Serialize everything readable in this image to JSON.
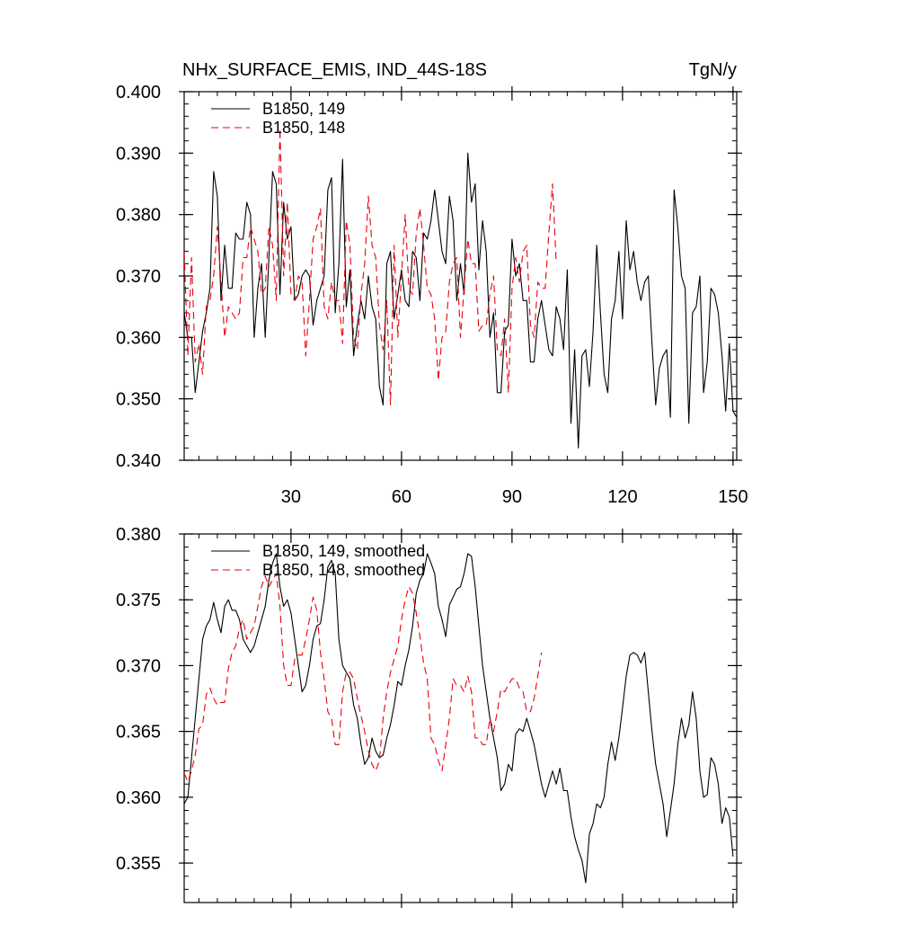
{
  "page": {
    "title_left": "NHx_SURFACE_EMIS, IND_44S-18S",
    "title_right": "TgN/y"
  },
  "chart_data": [
    {
      "type": "line",
      "ylim": [
        0.34,
        0.4
      ],
      "xlim": [
        1,
        151
      ],
      "yticks": [
        0.34,
        0.35,
        0.36,
        0.37,
        0.38,
        0.39,
        0.4
      ],
      "ytick_labels": [
        "0.340",
        "0.350",
        "0.360",
        "0.370",
        "0.380",
        "0.390",
        "0.400"
      ],
      "xticks": [
        30,
        60,
        90,
        120,
        150
      ],
      "xtick_labels": [
        "30",
        "60",
        "90",
        "120",
        "150"
      ],
      "legend_position": "top-left",
      "series": [
        {
          "name": "B1850, 149",
          "color": "#000000",
          "dash": "solid",
          "values": [
            0.364,
            0.36,
            0.36,
            0.351,
            0.356,
            0.361,
            0.364,
            0.368,
            0.387,
            0.383,
            0.366,
            0.375,
            0.368,
            0.368,
            0.377,
            0.376,
            0.376,
            0.382,
            0.38,
            0.36,
            0.368,
            0.372,
            0.36,
            0.373,
            0.387,
            0.385,
            0.367,
            0.382,
            0.376,
            0.378,
            0.366,
            0.367,
            0.37,
            0.371,
            0.37,
            0.362,
            0.366,
            0.368,
            0.37,
            0.384,
            0.386,
            0.364,
            0.372,
            0.389,
            0.365,
            0.371,
            0.357,
            0.362,
            0.366,
            0.363,
            0.37,
            0.365,
            0.363,
            0.352,
            0.349,
            0.372,
            0.374,
            0.363,
            0.367,
            0.371,
            0.366,
            0.365,
            0.374,
            0.373,
            0.366,
            0.377,
            0.376,
            0.379,
            0.384,
            0.379,
            0.374,
            0.372,
            0.383,
            0.379,
            0.366,
            0.372,
            0.367,
            0.39,
            0.382,
            0.385,
            0.371,
            0.379,
            0.374,
            0.36,
            0.364,
            0.351,
            0.351,
            0.361,
            0.362,
            0.376,
            0.37,
            0.372,
            0.366,
            0.366,
            0.356,
            0.356,
            0.363,
            0.366,
            0.362,
            0.358,
            0.357,
            0.365,
            0.363,
            0.358,
            0.371,
            0.346,
            0.358,
            0.342,
            0.357,
            0.358,
            0.352,
            0.361,
            0.375,
            0.364,
            0.354,
            0.351,
            0.363,
            0.366,
            0.374,
            0.363,
            0.379,
            0.371,
            0.374,
            0.369,
            0.366,
            0.369,
            0.37,
            0.359,
            0.349,
            0.355,
            0.357,
            0.358,
            0.347,
            0.384,
            0.378,
            0.37,
            0.368,
            0.346,
            0.364,
            0.365,
            0.37,
            0.351,
            0.356,
            0.368,
            0.367,
            0.364,
            0.357,
            0.348,
            0.359,
            0.348,
            0.347
          ]
        },
        {
          "name": "B1850, 148",
          "color": "#e8000b",
          "dash": "8,5",
          "values": [
            0.374,
            0.357,
            0.373,
            0.356,
            0.359,
            0.354,
            0.365,
            0.366,
            0.37,
            0.378,
            0.369,
            0.36,
            0.365,
            0.364,
            0.363,
            0.364,
            0.373,
            0.373,
            0.378,
            0.376,
            0.374,
            0.367,
            0.368,
            0.378,
            0.375,
            0.366,
            0.394,
            0.37,
            0.382,
            0.367,
            0.366,
            0.37,
            0.369,
            0.357,
            0.366,
            0.376,
            0.378,
            0.381,
            0.365,
            0.363,
            0.369,
            0.366,
            0.366,
            0.359,
            0.379,
            0.375,
            0.36,
            0.358,
            0.367,
            0.372,
            0.383,
            0.375,
            0.373,
            0.362,
            0.358,
            0.366,
            0.349,
            0.375,
            0.36,
            0.37,
            0.38,
            0.368,
            0.367,
            0.377,
            0.381,
            0.375,
            0.368,
            0.367,
            0.363,
            0.353,
            0.36,
            0.361,
            0.369,
            0.372,
            0.373,
            0.36,
            0.368,
            0.376,
            0.372,
            0.372,
            0.361,
            0.362,
            0.362,
            0.367,
            0.37,
            0.358,
            0.357,
            0.363,
            0.351,
            0.368,
            0.373,
            0.369,
            0.374,
            0.375,
            0.362,
            0.36,
            0.369,
            0.368,
            0.368,
            0.377,
            0.385,
            0.372
          ]
        }
      ]
    },
    {
      "type": "line",
      "ylim": [
        0.352,
        0.38
      ],
      "xlim": [
        1,
        151
      ],
      "yticks": [
        0.355,
        0.36,
        0.365,
        0.37,
        0.375,
        0.38
      ],
      "ytick_labels": [
        "0.355",
        "0.360",
        "0.365",
        "0.370",
        "0.375",
        "0.380"
      ],
      "xticks": [
        30,
        60,
        90,
        120,
        150
      ],
      "xtick_labels": [],
      "legend_position": "top-left",
      "series": [
        {
          "name": "B1850, 149, smoothed",
          "color": "#000000",
          "dash": "solid",
          "values": [
            0.3595,
            0.36,
            0.363,
            0.366,
            0.369,
            0.372,
            0.373,
            0.3735,
            0.3748,
            0.3735,
            0.3725,
            0.3745,
            0.375,
            0.3742,
            0.3742,
            0.3735,
            0.372,
            0.3715,
            0.371,
            0.3715,
            0.3725,
            0.3735,
            0.3745,
            0.3765,
            0.3778,
            0.3785,
            0.376,
            0.3745,
            0.375,
            0.374,
            0.372,
            0.37,
            0.368,
            0.3685,
            0.37,
            0.372,
            0.373,
            0.3732,
            0.375,
            0.3775,
            0.378,
            0.377,
            0.372,
            0.37,
            0.3695,
            0.369,
            0.367,
            0.366,
            0.364,
            0.3625,
            0.363,
            0.3645,
            0.3635,
            0.363,
            0.3632,
            0.3645,
            0.3655,
            0.367,
            0.3688,
            0.3685,
            0.37,
            0.3712,
            0.373,
            0.3755,
            0.3765,
            0.377,
            0.3785,
            0.3778,
            0.377,
            0.3745,
            0.3735,
            0.3722,
            0.3746,
            0.3752,
            0.3758,
            0.376,
            0.377,
            0.3785,
            0.3783,
            0.376,
            0.373,
            0.37,
            0.368,
            0.366,
            0.3645,
            0.363,
            0.3605,
            0.361,
            0.3625,
            0.362,
            0.3648,
            0.3652,
            0.365,
            0.366,
            0.365,
            0.364,
            0.3625,
            0.361,
            0.36,
            0.361,
            0.362,
            0.361,
            0.3622,
            0.3605,
            0.3605,
            0.3585,
            0.357,
            0.356,
            0.3552,
            0.3535,
            0.3572,
            0.358,
            0.3595,
            0.3592,
            0.36,
            0.3625,
            0.3642,
            0.3628,
            0.3645,
            0.3668,
            0.3692,
            0.3708,
            0.371,
            0.3708,
            0.3702,
            0.371,
            0.368,
            0.365,
            0.3625,
            0.361,
            0.3595,
            0.357,
            0.359,
            0.361,
            0.364,
            0.366,
            0.3645,
            0.3655,
            0.368,
            0.366,
            0.362,
            0.36,
            0.3602,
            0.363,
            0.3625,
            0.361,
            0.358,
            0.3592,
            0.3585,
            0.3555
          ]
        },
        {
          "name": "B1850, 148, smoothed",
          "color": "#e8000b",
          "dash": "8,5",
          "values": [
            0.3618,
            0.3612,
            0.362,
            0.3632,
            0.3652,
            0.3655,
            0.3678,
            0.3683,
            0.3675,
            0.367,
            0.3672,
            0.3672,
            0.3698,
            0.371,
            0.3715,
            0.3728,
            0.3735,
            0.372,
            0.3725,
            0.373,
            0.3745,
            0.376,
            0.3768,
            0.376,
            0.3765,
            0.377,
            0.3745,
            0.37,
            0.3685,
            0.3685,
            0.3705,
            0.3708,
            0.3708,
            0.372,
            0.3735,
            0.3752,
            0.3742,
            0.371,
            0.369,
            0.3665,
            0.366,
            0.364,
            0.364,
            0.368,
            0.3695,
            0.3695,
            0.369,
            0.3675,
            0.3662,
            0.365,
            0.3635,
            0.3625,
            0.362,
            0.3628,
            0.366,
            0.368,
            0.3695,
            0.3705,
            0.3715,
            0.3735,
            0.375,
            0.376,
            0.3755,
            0.374,
            0.3722,
            0.3702,
            0.369,
            0.3645,
            0.364,
            0.3628,
            0.362,
            0.364,
            0.366,
            0.369,
            0.3685,
            0.3685,
            0.368,
            0.3692,
            0.368,
            0.3645,
            0.3645,
            0.364,
            0.364,
            0.366,
            0.365,
            0.3665,
            0.3682,
            0.368,
            0.3685,
            0.369,
            0.369,
            0.3683,
            0.368,
            0.3665,
            0.3665,
            0.3675,
            0.3692,
            0.371
          ]
        }
      ]
    }
  ]
}
